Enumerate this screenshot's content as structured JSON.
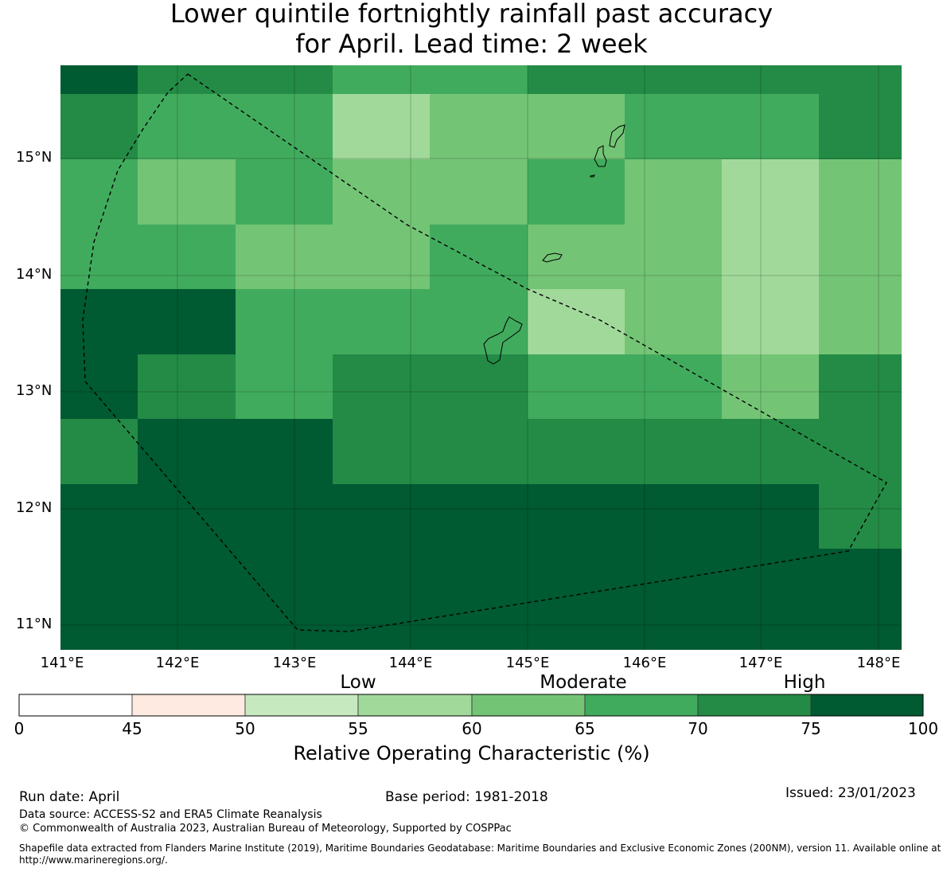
{
  "title": {
    "line1": "Lower quintile fortnightly rainfall past accuracy",
    "line2": "for April. Lead time: 2 week"
  },
  "map": {
    "lat_labels": [
      "15°N",
      "14°N",
      "13°N",
      "12°N",
      "11°N"
    ],
    "lon_labels": [
      "141°E",
      "142°E",
      "143°E",
      "144°E",
      "145°E",
      "146°E",
      "147°E",
      "148°E"
    ],
    "grid_values_percent": [
      [
        80,
        72,
        72,
        67,
        67,
        72,
        72,
        72,
        72
      ],
      [
        72,
        67,
        67,
        57,
        62,
        62,
        67,
        67,
        72
      ],
      [
        67,
        62,
        67,
        62,
        62,
        67,
        62,
        57,
        62
      ],
      [
        67,
        67,
        62,
        62,
        67,
        62,
        62,
        57,
        62
      ],
      [
        80,
        80,
        67,
        67,
        67,
        57,
        62,
        57,
        62
      ],
      [
        80,
        72,
        67,
        72,
        72,
        67,
        67,
        62,
        72
      ],
      [
        72,
        80,
        80,
        72,
        72,
        72,
        72,
        72,
        72
      ],
      [
        80,
        80,
        80,
        80,
        80,
        80,
        80,
        80,
        72
      ],
      [
        80,
        80,
        80,
        80,
        80,
        80,
        80,
        80,
        80
      ]
    ]
  },
  "colorbar": {
    "categories": [
      "Low",
      "Moderate",
      "High"
    ],
    "ticks": [
      "0",
      "45",
      "50",
      "55",
      "60",
      "65",
      "70",
      "75",
      "100"
    ],
    "colors": [
      "#ffffff",
      "#feeae1",
      "#c7e9c0",
      "#a1d99b",
      "#74c476",
      "#41ab5d",
      "#238b45",
      "#005a32"
    ],
    "label": "Relative Operating Characteristic (%)"
  },
  "footer": {
    "run_date": "Run date: April",
    "base_period": "Base period: 1981-2018",
    "issued": "Issued: 23/01/2023",
    "data_source": "Data source: ACCESS-S2 and ERA5 Climate Reanalysis",
    "copyright": "© Commonwealth of Australia 2023, Australian Bureau of Meteorology, Supported by COSPPac",
    "shapefile": "Shapefile data extracted from Flanders Marine Institute (2019), Maritime Boundaries Geodatabase: Maritime Boundaries and Exclusive Economic Zones (200NM), version 11. Available online at http://www.marineregions.org/."
  }
}
